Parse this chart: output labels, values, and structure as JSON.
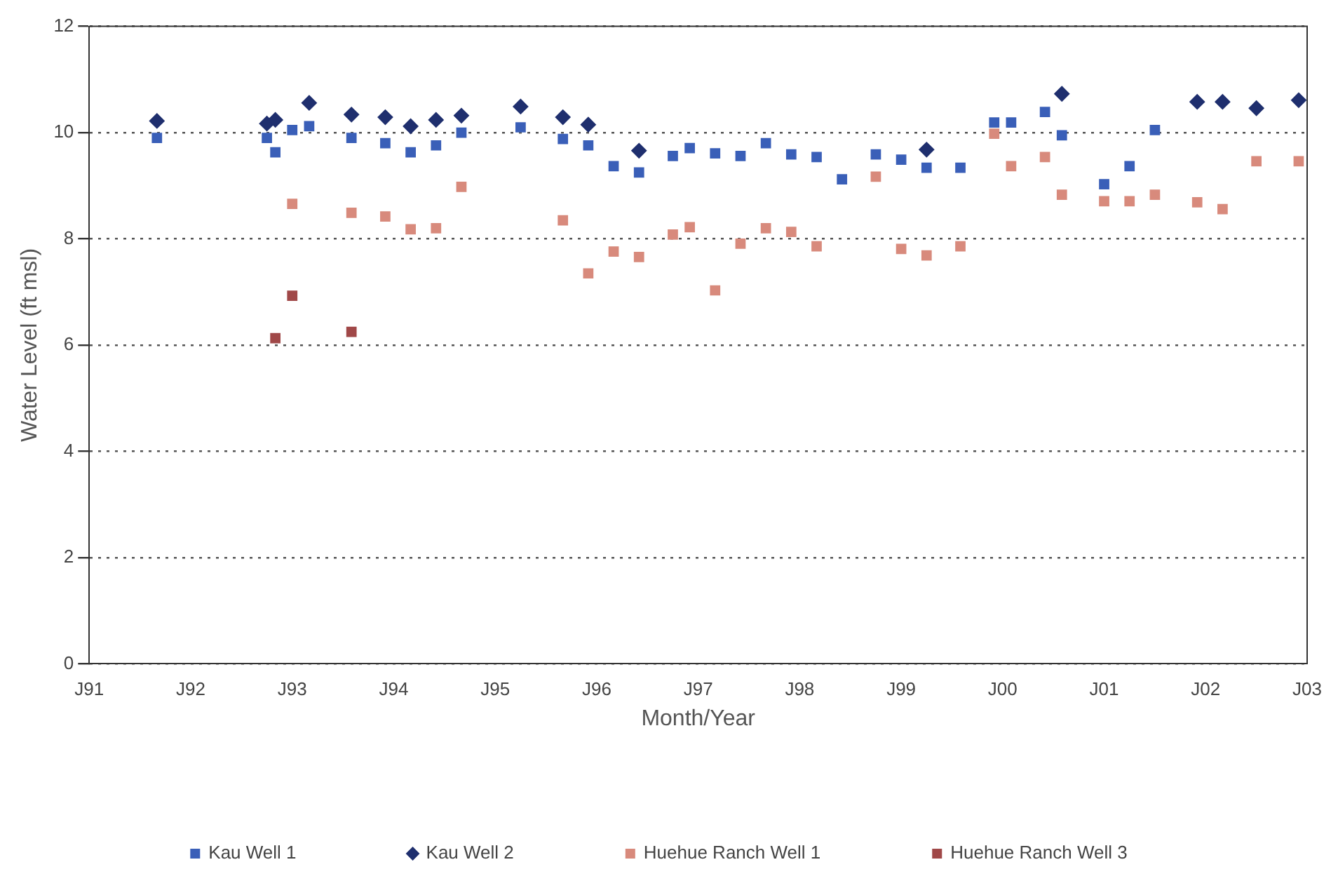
{
  "chart_data": {
    "type": "scatter",
    "xlabel": "Month/Year",
    "ylabel": "Water Level (ft msl)",
    "xlim": [
      "1991-01",
      "2003-01"
    ],
    "xticks": [
      {
        "value": "1991-01",
        "label": "J91"
      },
      {
        "value": "1992-01",
        "label": "J92"
      },
      {
        "value": "1993-01",
        "label": "J93"
      },
      {
        "value": "1994-01",
        "label": "J94"
      },
      {
        "value": "1995-01",
        "label": "J95"
      },
      {
        "value": "1996-01",
        "label": "J96"
      },
      {
        "value": "1997-01",
        "label": "J97"
      },
      {
        "value": "1998-01",
        "label": "J98"
      },
      {
        "value": "1999-01",
        "label": "J99"
      },
      {
        "value": "2000-01",
        "label": "J00"
      },
      {
        "value": "2001-01",
        "label": "J01"
      },
      {
        "value": "2002-01",
        "label": "J02"
      },
      {
        "value": "2003-01",
        "label": "J03"
      }
    ],
    "ylim": [
      0,
      12
    ],
    "yticks": [
      0,
      2,
      4,
      6,
      8,
      10,
      12
    ],
    "grid": "y",
    "line_style": "dotted",
    "legend": "bottom",
    "series": [
      {
        "name": "Kau Well 1",
        "color": "#3a5fb8",
        "marker": "square",
        "x": [
          "1991-09",
          "1992-10",
          "1992-11",
          "1993-01",
          "1993-03",
          "1993-08",
          "1993-12",
          "1994-03",
          "1994-06",
          "1994-09",
          "1995-04",
          "1995-09",
          "1995-12",
          "1996-03",
          "1996-06",
          "1996-10",
          "1996-12",
          "1997-03",
          "1997-06",
          "1997-09",
          "1997-12",
          "1998-03",
          "1998-06",
          "1998-10",
          "1999-01",
          "1999-04",
          "1999-08",
          "1999-12",
          "2000-02",
          "2000-06",
          "2000-08",
          "2001-01",
          "2001-04",
          "2001-07"
        ],
        "values": [
          9.9,
          9.9,
          9.63,
          10.05,
          10.12,
          9.9,
          9.8,
          9.63,
          9.76,
          10.0,
          10.1,
          9.88,
          9.76,
          9.37,
          9.25,
          9.56,
          9.71,
          9.61,
          9.56,
          9.8,
          9.59,
          9.54,
          9.12,
          9.59,
          9.49,
          9.34,
          9.34,
          10.19,
          10.19,
          10.39,
          9.95,
          9.03,
          9.37,
          10.05
        ]
      },
      {
        "name": "Kau Well 2",
        "color": "#1f2f6e",
        "marker": "diamond",
        "x": [
          "1991-09",
          "1992-10",
          "1992-11",
          "1993-03",
          "1993-08",
          "1993-12",
          "1994-03",
          "1994-06",
          "1994-09",
          "1995-04",
          "1995-09",
          "1995-12",
          "1996-06",
          "1999-04",
          "2000-08",
          "2001-12",
          "2002-03",
          "2002-07",
          "2002-12"
        ],
        "values": [
          10.22,
          10.17,
          10.24,
          10.56,
          10.34,
          10.29,
          10.12,
          10.24,
          10.32,
          10.49,
          10.29,
          10.15,
          9.66,
          9.68,
          10.73,
          10.58,
          10.58,
          10.46,
          10.61
        ]
      },
      {
        "name": "Huehue Ranch Well 1",
        "color": "#d88a7c",
        "marker": "square",
        "x": [
          "1993-01",
          "1993-08",
          "1993-12",
          "1994-03",
          "1994-06",
          "1994-09",
          "1995-09",
          "1995-12",
          "1996-03",
          "1996-06",
          "1996-10",
          "1996-12",
          "1997-03",
          "1997-06",
          "1997-09",
          "1997-12",
          "1998-03",
          "1998-10",
          "1999-01",
          "1999-04",
          "1999-08",
          "1999-12",
          "2000-02",
          "2000-06",
          "2000-08",
          "2001-01",
          "2001-04",
          "2001-07",
          "2001-12",
          "2002-03",
          "2002-07",
          "2002-12"
        ],
        "values": [
          8.66,
          8.49,
          8.42,
          8.18,
          8.2,
          8.98,
          8.35,
          7.35,
          7.76,
          7.66,
          8.08,
          8.22,
          7.03,
          7.91,
          8.2,
          8.13,
          7.86,
          9.17,
          7.81,
          7.69,
          7.86,
          9.98,
          9.37,
          9.54,
          8.83,
          8.71,
          8.71,
          8.83,
          8.69,
          8.56,
          9.46,
          9.46
        ]
      },
      {
        "name": "Huehue Ranch Well 3",
        "color": "#a04848",
        "marker": "square",
        "x": [
          "1992-11",
          "1993-01",
          "1993-08"
        ],
        "values": [
          6.13,
          6.93,
          6.25
        ]
      }
    ]
  }
}
